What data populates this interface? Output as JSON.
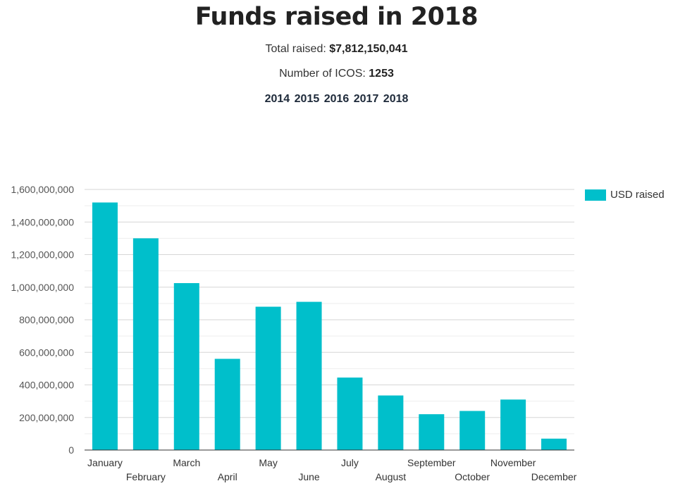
{
  "header": {
    "title": "Funds raised in 2018",
    "total_label": "Total raised:",
    "total_value": "$7,812,150,041",
    "icos_label": "Number of ICOS:",
    "icos_value": "1253",
    "years": [
      "2014",
      "2015",
      "2016",
      "2017",
      "2018"
    ]
  },
  "colors": {
    "bar": "#00bfcb",
    "grid": "#d6d6d6",
    "axis": "#333333",
    "tick_text": "#555555"
  },
  "chart_data": {
    "type": "bar",
    "categories": [
      "January",
      "February",
      "March",
      "April",
      "May",
      "June",
      "July",
      "August",
      "September",
      "October",
      "November",
      "December"
    ],
    "series": [
      {
        "name": "USD raised",
        "values": [
          1520000000,
          1300000000,
          1025000000,
          560000000,
          880000000,
          910000000,
          445000000,
          335000000,
          220000000,
          240000000,
          310000000,
          70000000
        ]
      }
    ],
    "yticks": [
      "0",
      "200,000,000",
      "400,000,000",
      "600,000,000",
      "800,000,000",
      "1,000,000,000",
      "1,200,000,000",
      "1,400,000,000",
      "1,600,000,000"
    ],
    "ylim": [
      0,
      1600000000
    ],
    "grid": true,
    "legend_position": "right",
    "title": "",
    "xlabel": "",
    "ylabel": ""
  }
}
